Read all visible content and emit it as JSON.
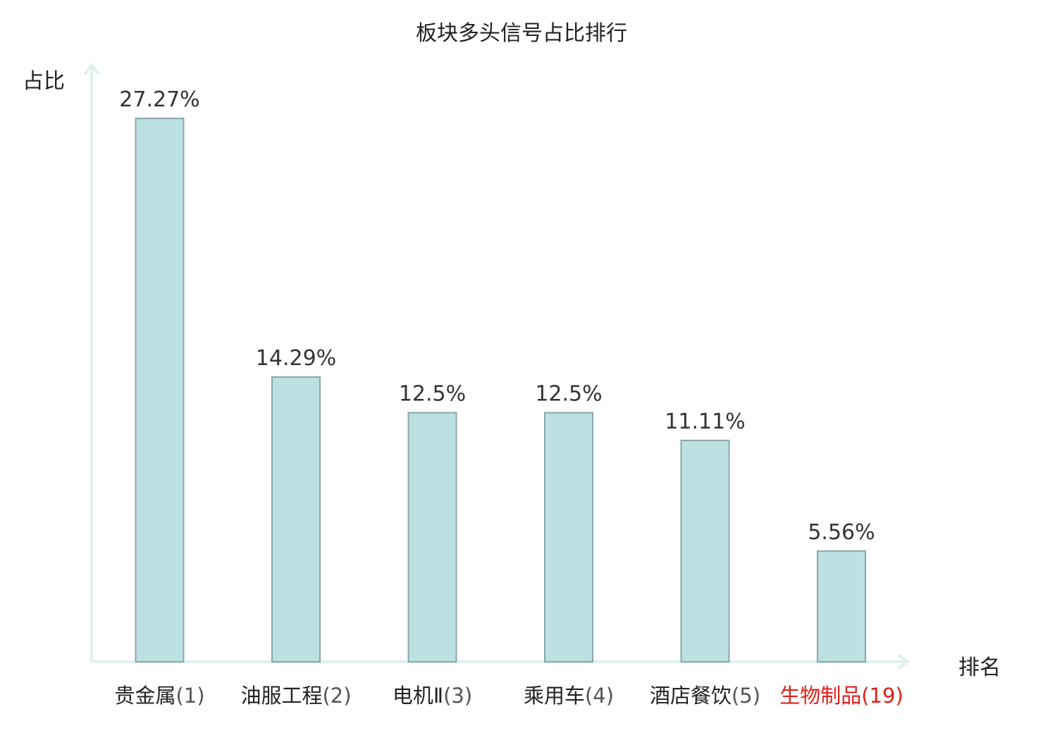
{
  "chart_data": {
    "type": "bar",
    "title": "板块多头信号占比排行",
    "ylabel": "占比",
    "xlabel": "排名",
    "categories": [
      "贵金属",
      "油服工程",
      "电机Ⅱ",
      "乘用车",
      "酒店餐饮",
      "生物制品"
    ],
    "ranks": [
      "(1)",
      "(2)",
      "(3)",
      "(4)",
      "(5)",
      "(19)"
    ],
    "values": [
      27.27,
      14.29,
      12.5,
      12.5,
      11.11,
      5.56
    ],
    "value_labels": [
      "27.27%",
      "14.29%",
      "12.5%",
      "12.5%",
      "11.11%",
      "5.56%"
    ],
    "highlight_index": 5,
    "ylim": [
      0,
      27.27
    ],
    "grid": false,
    "legend": "none"
  },
  "colors": {
    "bar_fill": "#bde0e2",
    "bar_stroke": "#8aa7a8",
    "axis": "#dff1ee",
    "highlight_text": "#e0201a",
    "value_label": "#333333"
  }
}
